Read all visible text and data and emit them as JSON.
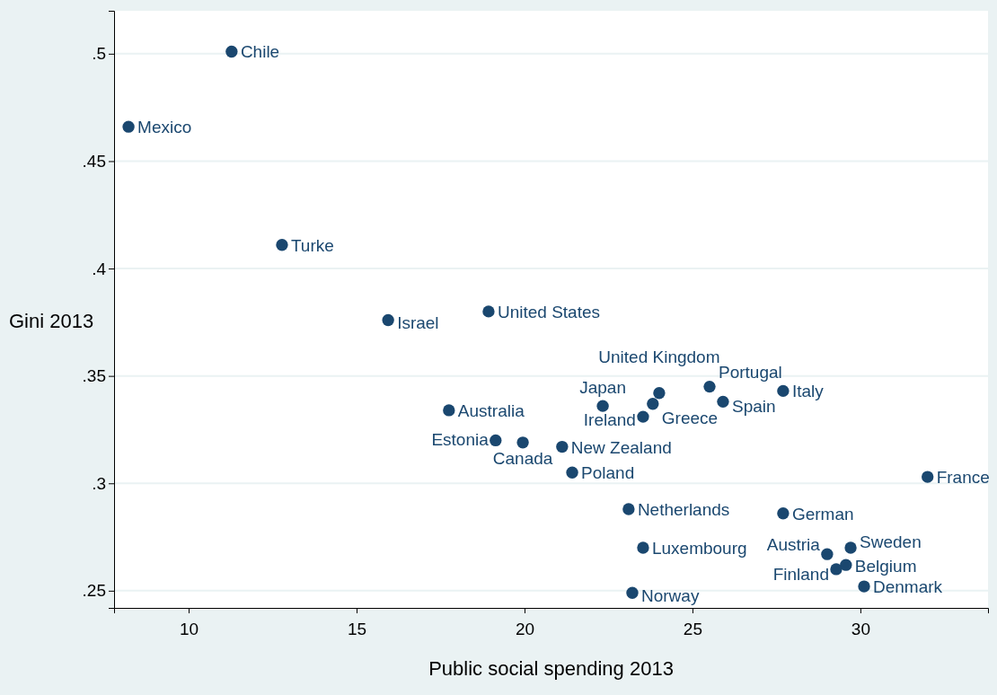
{
  "chart_data": {
    "type": "scatter",
    "xlabel": "Public social spending 2013",
    "ylabel": "Gini 2013",
    "xlim": [
      7.78,
      33.8
    ],
    "ylim": [
      0.242,
      0.52
    ],
    "xticks": [
      10,
      15,
      20,
      25,
      30
    ],
    "yticks": [
      {
        "value": 0.25,
        "label": ".25"
      },
      {
        "value": 0.3,
        "label": ".3"
      },
      {
        "value": 0.35,
        "label": ".35"
      },
      {
        "value": 0.4,
        "label": ".4"
      },
      {
        "value": 0.45,
        "label": ".45"
      },
      {
        "value": 0.5,
        "label": ".5"
      }
    ],
    "grid": "y",
    "marker": "circle",
    "series": [
      {
        "color": "#1a476f",
        "x": [
          11.28,
          8.21,
          12.78,
          15.94,
          18.93,
          17.75,
          19.14,
          19.95,
          21.12,
          21.42,
          22.33,
          24.01,
          23.82,
          23.53,
          25.51,
          25.91,
          27.7,
          32.0,
          23.1,
          27.7,
          23.53,
          29.01,
          29.71,
          29.57,
          29.28,
          30.11,
          23.21
        ],
        "values": [
          0.501,
          0.466,
          0.411,
          0.376,
          0.38,
          0.334,
          0.32,
          0.319,
          0.317,
          0.305,
          0.336,
          0.342,
          0.337,
          0.331,
          0.345,
          0.338,
          0.343,
          0.303,
          0.288,
          0.286,
          0.27,
          0.267,
          0.27,
          0.262,
          0.26,
          0.252,
          0.249
        ]
      }
    ],
    "annotations": [
      {
        "text": "Chile",
        "x": 11.28,
        "y": 0.501
      },
      {
        "text": "Mexico",
        "x": 8.21,
        "y": 0.466
      },
      {
        "text": "Turke",
        "x": 12.78,
        "y": 0.411
      },
      {
        "text": "Israel",
        "x": 15.94,
        "y": 0.376
      },
      {
        "text": "United States",
        "x": 18.93,
        "y": 0.38
      },
      {
        "text": "Australia",
        "x": 17.75,
        "y": 0.334
      },
      {
        "text": "Estonia",
        "x": 19.14,
        "y": 0.32
      },
      {
        "text": "Canada",
        "x": 19.95,
        "y": 0.319
      },
      {
        "text": "New Zealand",
        "x": 21.12,
        "y": 0.317
      },
      {
        "text": "Poland",
        "x": 21.42,
        "y": 0.305
      },
      {
        "text": "Japan",
        "x": 22.33,
        "y": 0.336
      },
      {
        "text": "United Kingdom",
        "x": 24.01,
        "y": 0.342
      },
      {
        "text": "Greece",
        "x": 23.82,
        "y": 0.337
      },
      {
        "text": "Ireland",
        "x": 23.53,
        "y": 0.331
      },
      {
        "text": "Portugal",
        "x": 25.51,
        "y": 0.345
      },
      {
        "text": "Spain",
        "x": 25.91,
        "y": 0.338
      },
      {
        "text": "Italy",
        "x": 27.7,
        "y": 0.343
      },
      {
        "text": "France",
        "x": 32.0,
        "y": 0.303
      },
      {
        "text": "Netherlands",
        "x": 23.1,
        "y": 0.288
      },
      {
        "text": "German",
        "x": 27.7,
        "y": 0.286
      },
      {
        "text": "Luxembourg",
        "x": 23.53,
        "y": 0.27
      },
      {
        "text": "Austria",
        "x": 29.01,
        "y": 0.267
      },
      {
        "text": "Sweden",
        "x": 29.71,
        "y": 0.27
      },
      {
        "text": "Belgium",
        "x": 29.57,
        "y": 0.262
      },
      {
        "text": "Finland",
        "x": 29.28,
        "y": 0.26
      },
      {
        "text": "Denmark",
        "x": 30.11,
        "y": 0.252
      },
      {
        "text": "Norway",
        "x": 23.21,
        "y": 0.249
      }
    ]
  }
}
